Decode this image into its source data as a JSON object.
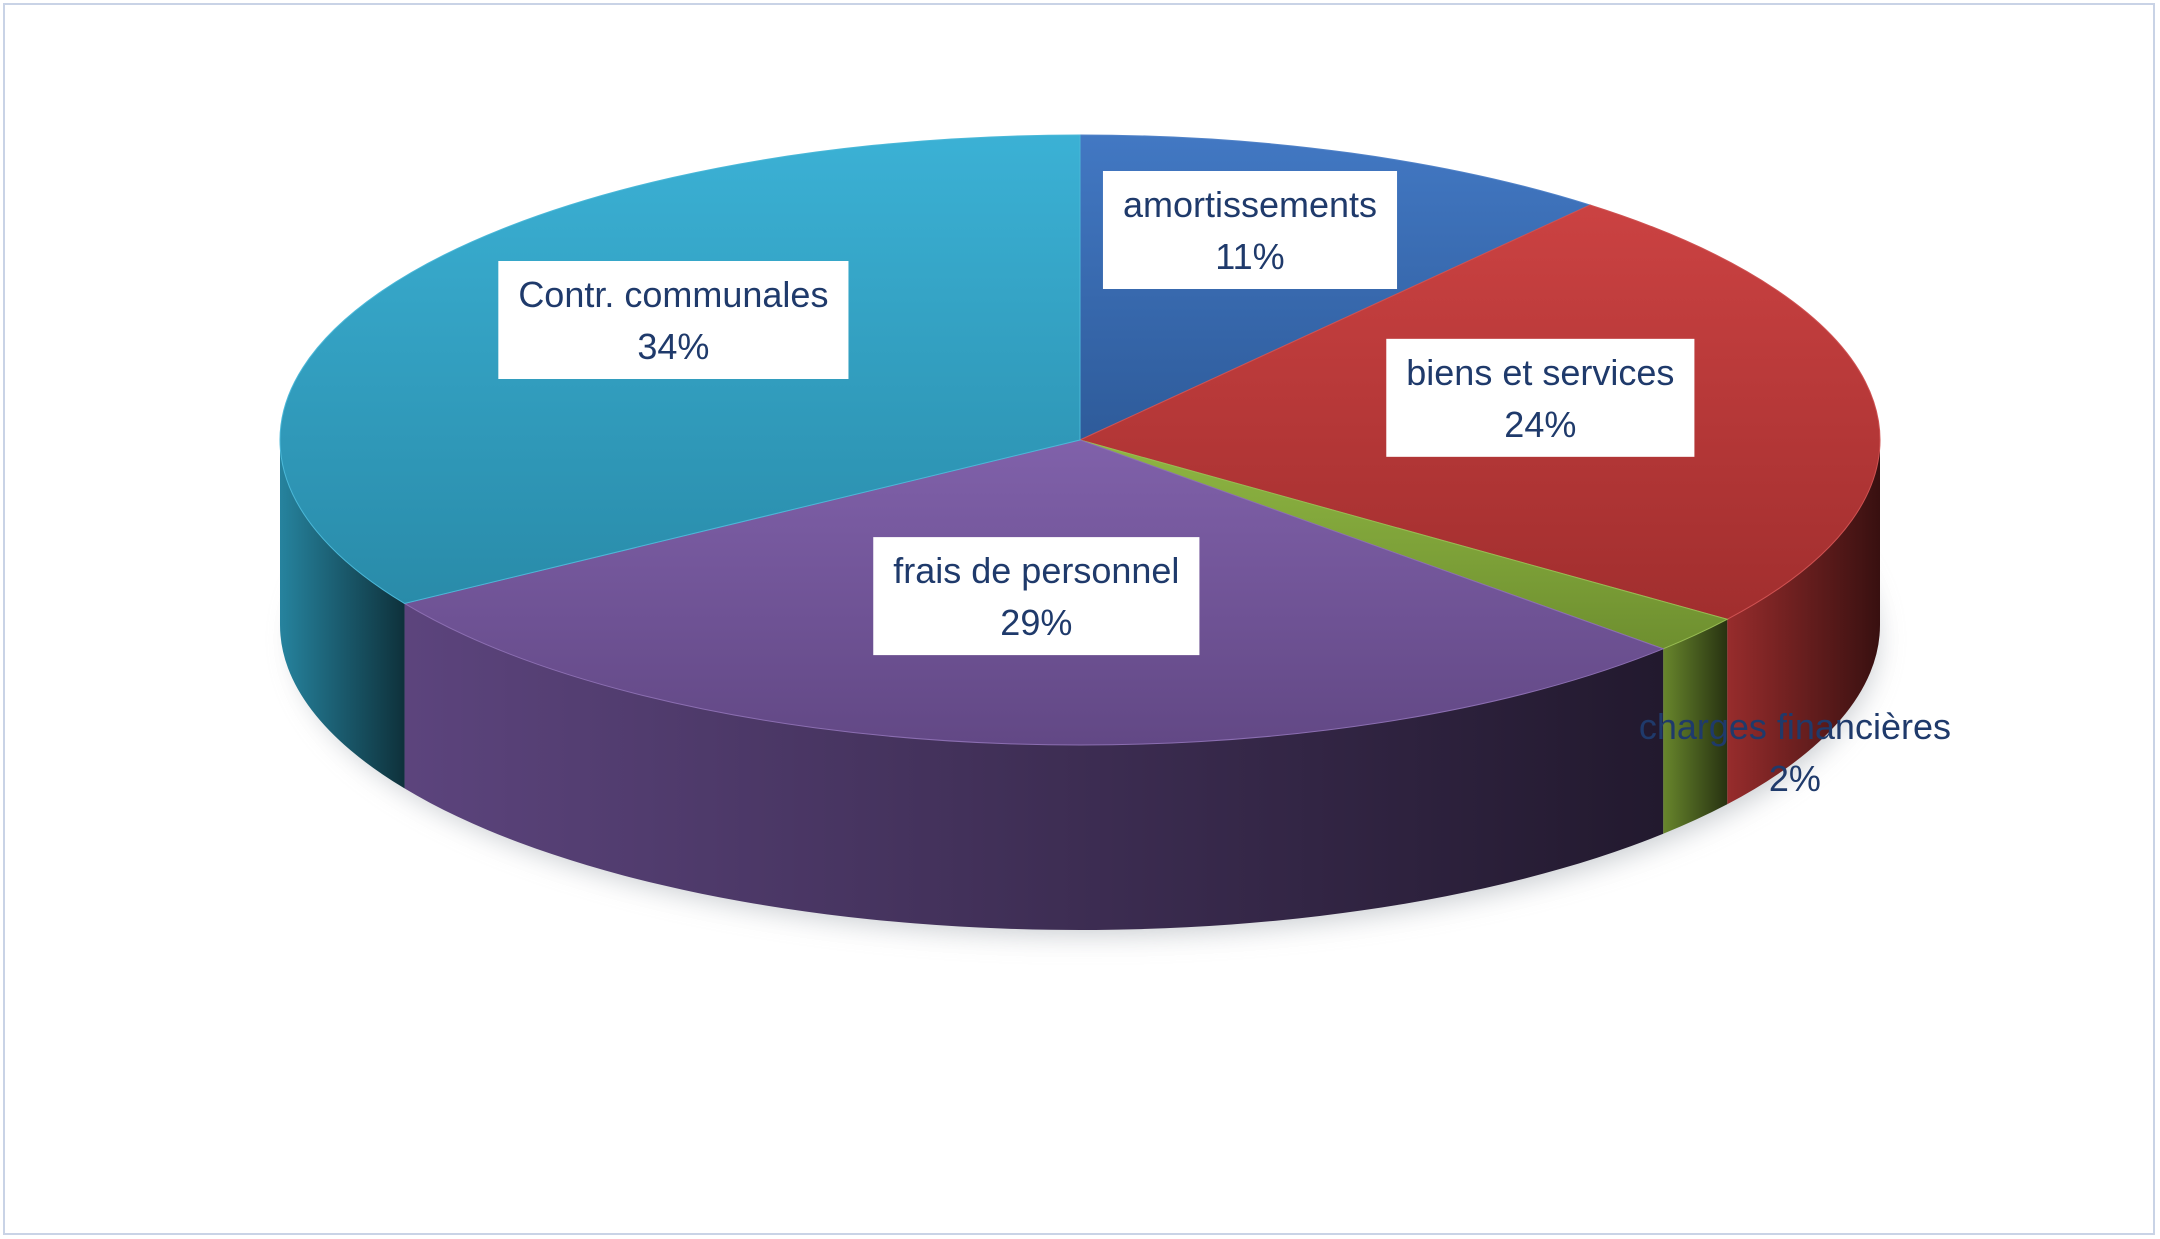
{
  "chart_data": {
    "type": "pie",
    "style": "3d",
    "categories": [
      "amortissements",
      "biens et services",
      "charges financières",
      "frais de personnel",
      "Contr. communales"
    ],
    "values": [
      11,
      24,
      2,
      29,
      34
    ],
    "unit": "%",
    "colors": [
      "#3a72c0",
      "#c93a3a",
      "#8ab33b",
      "#7b5aa6",
      "#33aed3"
    ],
    "labels": [
      {
        "name": "amortissements",
        "value": "11%",
        "boxed": true
      },
      {
        "name": "biens et services",
        "value": "24%",
        "boxed": true
      },
      {
        "name": "charges financières",
        "value": "2%",
        "boxed": false
      },
      {
        "name": "frais de personnel",
        "value": "29%",
        "boxed": true
      },
      {
        "name": "Contr. communales",
        "value": "34%",
        "boxed": true
      }
    ]
  }
}
